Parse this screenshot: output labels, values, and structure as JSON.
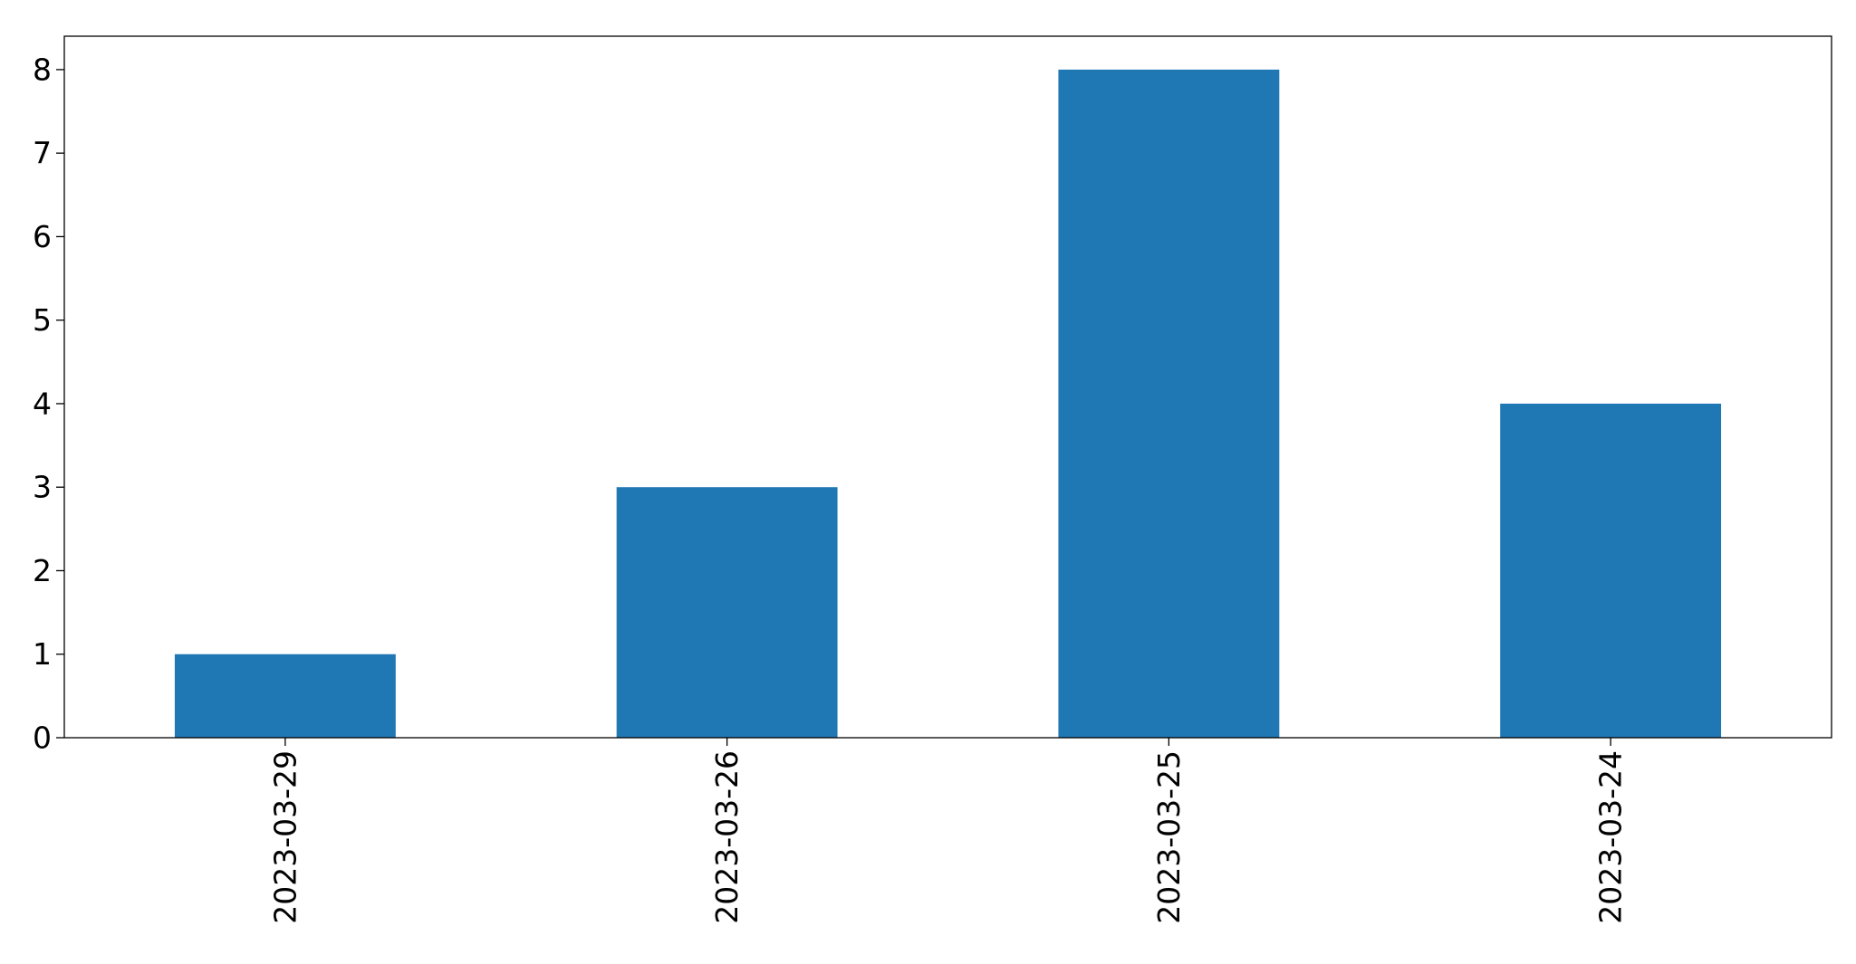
{
  "chart_data": {
    "type": "bar",
    "title": "",
    "xlabel": "",
    "ylabel": "",
    "categories": [
      "2023-03-29",
      "2023-03-26",
      "2023-03-25",
      "2023-03-24"
    ],
    "values": [
      1,
      3,
      8,
      4
    ],
    "ylim": [
      0,
      8.4
    ],
    "yticks": [
      "0",
      "1",
      "2",
      "3",
      "4",
      "5",
      "6",
      "7",
      "8"
    ],
    "x_tick_rotation": "vertical",
    "grid": false,
    "legend": "none",
    "bar_color": "#1f77b4"
  }
}
